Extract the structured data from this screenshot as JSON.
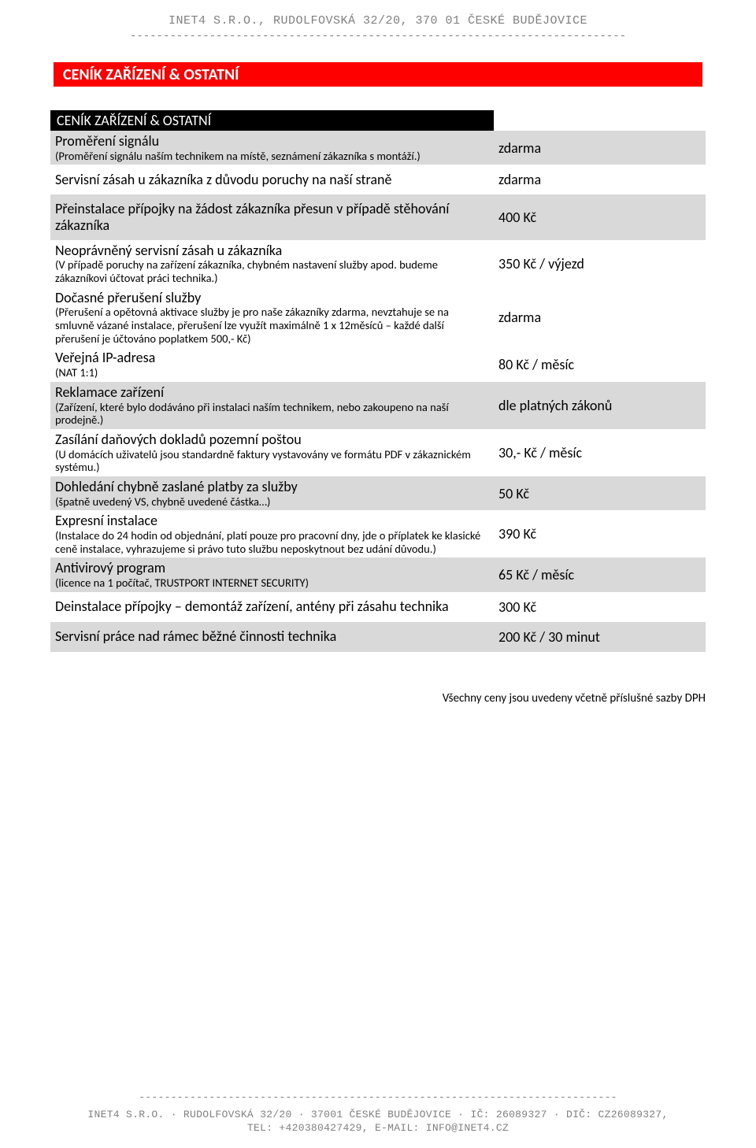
{
  "header": {
    "company_line": "INET4 S.R.O., RUDOLFOVSKÁ 32/20, 370 01 ČESKÉ BUDĚJOVICE",
    "dashes": "---------------------------------------------------------------------------"
  },
  "section": {
    "red_title": "CENÍK ZAŘÍZENÍ & OSTATNÍ",
    "black_title": "CENÍK ZAŘÍZENÍ & OSTATNÍ"
  },
  "rows": [
    {
      "shaded": true,
      "title": "Proměření signálu",
      "sub": "(Proměření signálu naším technikem na místě, seznámení zákazníka s montáží.)",
      "price": "zdarma"
    },
    {
      "shaded": false,
      "title": "Servisní zásah u zákazníka z důvodu poruchy na naší straně",
      "sub": "",
      "price": "zdarma"
    },
    {
      "shaded": true,
      "title": "Přeinstalace přípojky na žádost zákazníka přesun v případě stěhování zákazníka",
      "sub": "",
      "price": "400 Kč"
    },
    {
      "shaded": false,
      "title": "Neoprávněný servisní zásah u zákazníka",
      "sub": "(V případě poruchy na zařízení zákazníka, chybném nastavení služby apod. budeme zákazníkovi účtovat práci technika.)",
      "price": "350 Kč / výjezd"
    },
    {
      "shaded": false,
      "title": "Dočasné přerušení služby",
      "sub": "(Přerušení a opětovná aktivace služby je pro naše zákazníky zdarma, nevztahuje se na smluvně vázané instalace, přerušení lze využít maximálně 1 x 12měsíců – každé další přerušení je účtováno poplatkem 500,- Kč)",
      "price": "zdarma"
    },
    {
      "shaded": false,
      "title": "Veřejná IP-adresa",
      "sub": "(NAT 1:1)",
      "price": "80 Kč / měsíc"
    },
    {
      "shaded": true,
      "title": "Reklamace zařízení",
      "sub": "(Zařízení, které bylo dodáváno při instalaci naším technikem, nebo zakoupeno na naší prodejně.)",
      "price": "dle platných zákonů"
    },
    {
      "shaded": false,
      "title": "Zasílání daňových dokladů pozemní poštou",
      "sub": "(U domácích uživatelů jsou standardně faktury vystavovány ve formátu PDF v zákaznickém systému.)",
      "price": "30,- Kč / měsíc"
    },
    {
      "shaded": true,
      "title": "Dohledání chybně zaslané platby za služby",
      "sub": "(špatně uvedený VS, chybně uvedené částka…)",
      "price": "50 Kč"
    },
    {
      "shaded": false,
      "title": "Expresní instalace",
      "sub": "(Instalace do 24 hodin od objednání, platí pouze pro pracovní dny, jde o příplatek ke klasické ceně instalace, vyhrazujeme si právo tuto službu neposkytnout bez udání důvodu.)",
      "price": "390 Kč"
    },
    {
      "shaded": true,
      "title": "Antivirový program",
      "sub": "(licence na 1 počítač, TRUSTPORT INTERNET SECURITY)",
      "price": "65 Kč / měsíc"
    },
    {
      "shaded": false,
      "title": "Deinstalace přípojky – demontáž zařízení, antény při zásahu technika",
      "sub": "",
      "price": "300 Kč"
    },
    {
      "shaded": true,
      "title": "Servisní práce nad rámec běžné činnosti technika",
      "sub": "",
      "price": "200 Kč / 30 minut"
    }
  ],
  "footnote": "Všechny ceny jsou uvedeny včetně příslušné sazby DPH",
  "footer": {
    "dashes": "---------------------------------------------------------------------------",
    "line1": "INET4 S.R.O. · RUDOLFOVSKÁ 32/20 · 37001 ČESKÉ BUDĚJOVICE · IČ: 26089327 · DIČ: CZ26089327,",
    "line2": "TEL: +420380427429, E-MAIL: INFO@INET4.CZ"
  },
  "colors": {
    "red": "#ff0000",
    "black": "#000000",
    "shade": "#d9d9d9",
    "gray_text": "#808080",
    "background": "#ffffff"
  }
}
